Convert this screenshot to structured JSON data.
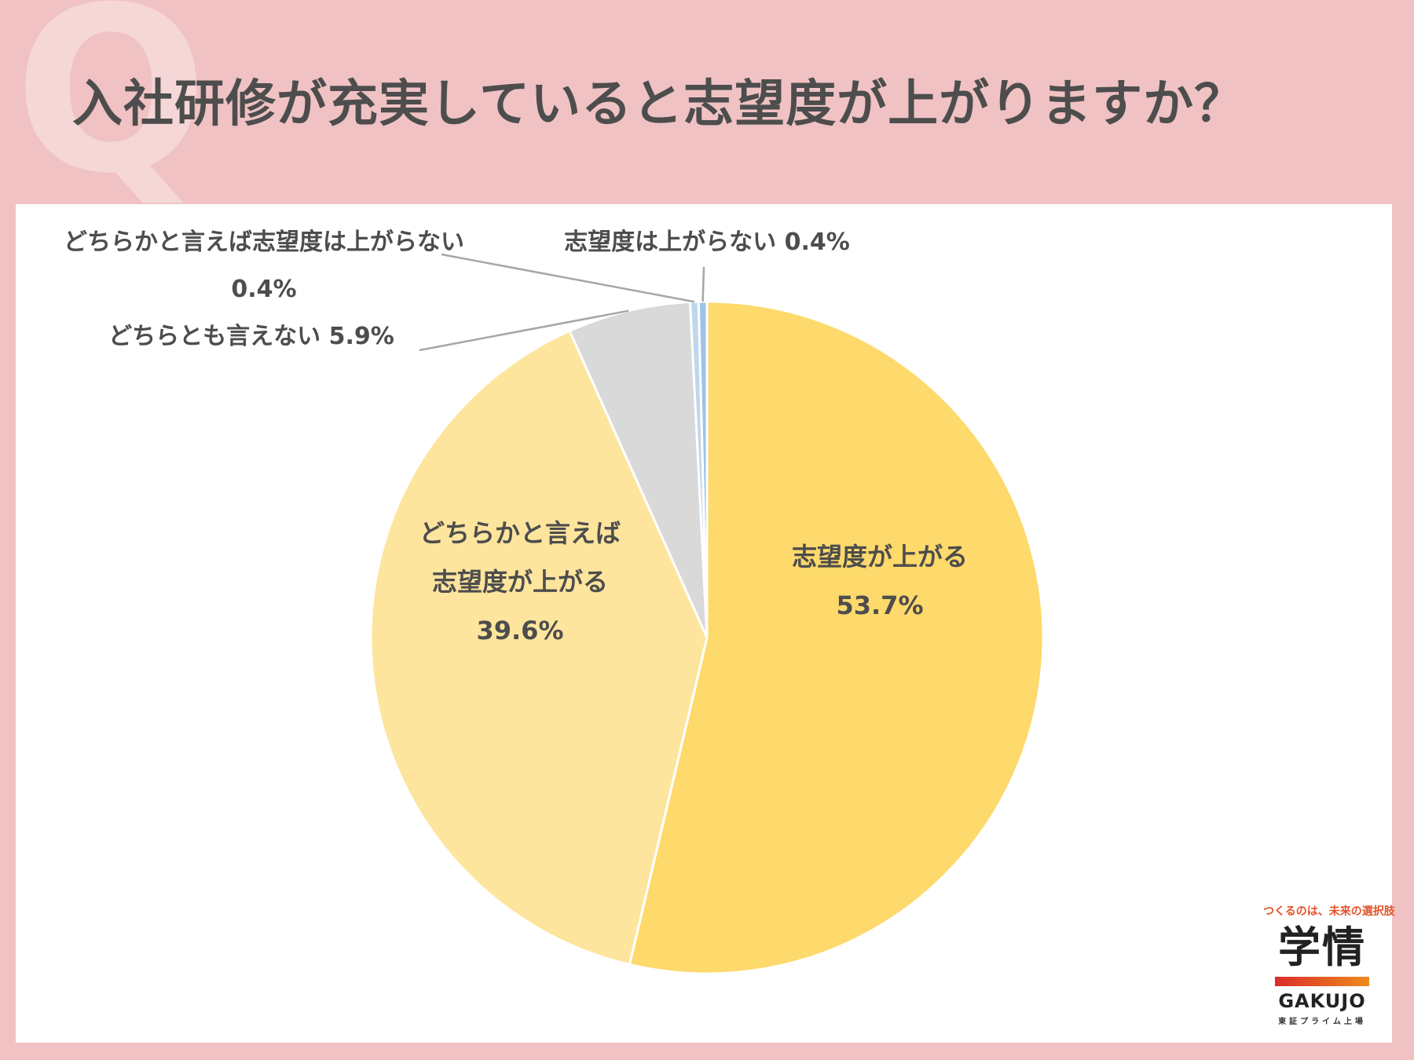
{
  "header": {
    "q_mark": "Q",
    "title": "入社研修が充実していると志望度が上がりますか？"
  },
  "chart_data": {
    "type": "pie",
    "title": "入社研修が充実していると志望度が上がりますか？",
    "start_angle_deg": 0,
    "direction": "clockwise",
    "slices": [
      {
        "label_lines": [
          "志望度が上がる"
        ],
        "value": 53.7,
        "value_text": "53.7%",
        "color": "#fed96b",
        "label_placement": "inside"
      },
      {
        "label_lines": [
          "どちらかと言えば",
          "志望度が上がる"
        ],
        "value": 39.6,
        "value_text": "39.6%",
        "color": "#fee59d",
        "label_placement": "inside"
      },
      {
        "label_lines": [
          "どちらとも言えない"
        ],
        "value": 5.9,
        "value_text": "5.9%",
        "color": "#d9d9d9",
        "label_placement": "outside"
      },
      {
        "label_lines": [
          "どちらかと言えば志望度は上がらない"
        ],
        "value": 0.4,
        "value_text": "0.4%",
        "color": "#bdd7ee",
        "label_placement": "outside"
      },
      {
        "label_lines": [
          "志望度は上がらない"
        ],
        "value": 0.4,
        "value_text": "0.4%",
        "color": "#9dc3e6",
        "label_placement": "outside"
      }
    ]
  },
  "logo": {
    "tagline": "つくるのは、未来の選択肢",
    "mark": "学情",
    "word": "GAKUJO",
    "sub": "東証プライム上場"
  }
}
